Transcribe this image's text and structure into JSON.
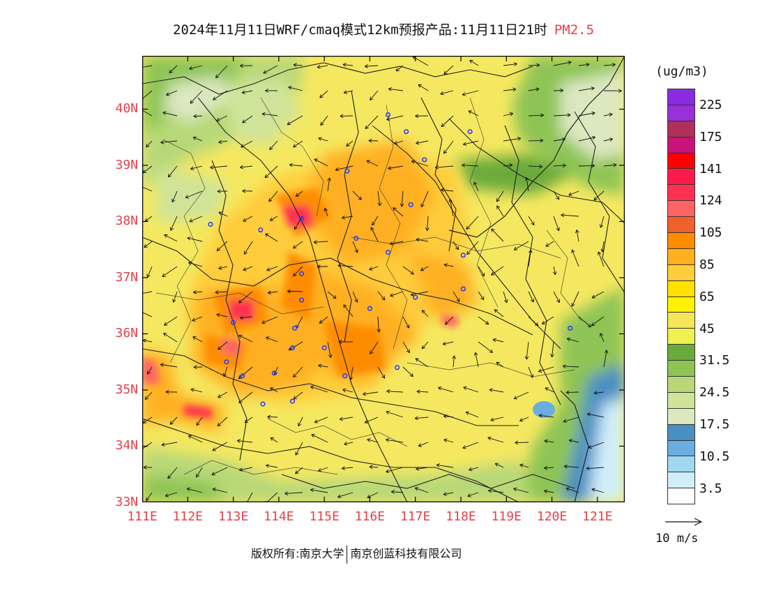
{
  "title": {
    "main": "2024年11月11日WRF/cmaq模式12km预报产品:11月11日21时",
    "variable": "PM2.5"
  },
  "latitude_labels": [
    "40N",
    "39N",
    "38N",
    "37N",
    "36N",
    "35N",
    "34N",
    "33N"
  ],
  "longitude_labels": [
    "111E",
    "112E",
    "113E",
    "114E",
    "115E",
    "116E",
    "117E",
    "118E",
    "119E",
    "120E",
    "121E"
  ],
  "colorbar": {
    "unit": "(ug/m3)",
    "colors": [
      "#8a2be2",
      "#9b30d9",
      "#b0305a",
      "#c8147a",
      "#ff0000",
      "#ff1a4b",
      "#ff3050",
      "#ff6464",
      "#f0602a",
      "#ff8c00",
      "#ffb020",
      "#ffcc3a",
      "#ffe000",
      "#fff200",
      "#f5e65a",
      "#f0f050",
      "#6aaa3a",
      "#8ec454",
      "#b8d878",
      "#cfe498",
      "#dce8c0",
      "#4a8fc4",
      "#6aaee0",
      "#a0d8f0",
      "#d0eefa",
      "#ffffff"
    ],
    "tick_labels": [
      "225",
      "175",
      "141",
      "124",
      "105",
      "85",
      "65",
      "45",
      "31.5",
      "24.5",
      "17.5",
      "10.5",
      "3.5"
    ]
  },
  "wind_key": {
    "label": "10 m/s"
  },
  "footer": {
    "copyright_prefix": "版权所有:南京大学",
    "company": "南京创蓝科技有限公司"
  },
  "map": {
    "city_markers": [
      {
        "lon": 116.4,
        "lat": 39.9
      },
      {
        "lon": 116.8,
        "lat": 39.6
      },
      {
        "lon": 117.2,
        "lat": 39.1
      },
      {
        "lon": 118.2,
        "lat": 39.6
      },
      {
        "lon": 115.5,
        "lat": 38.9
      },
      {
        "lon": 114.5,
        "lat": 38.05
      },
      {
        "lon": 116.9,
        "lat": 38.3
      },
      {
        "lon": 115.7,
        "lat": 37.7
      },
      {
        "lon": 116.4,
        "lat": 37.45
      },
      {
        "lon": 112.5,
        "lat": 37.95
      },
      {
        "lon": 113.6,
        "lat": 37.85
      },
      {
        "lon": 114.5,
        "lat": 37.07
      },
      {
        "lon": 114.5,
        "lat": 36.6
      },
      {
        "lon": 114.35,
        "lat": 36.1
      },
      {
        "lon": 113.0,
        "lat": 36.2
      },
      {
        "lon": 112.85,
        "lat": 35.5
      },
      {
        "lon": 113.2,
        "lat": 35.25
      },
      {
        "lon": 113.9,
        "lat": 35.3
      },
      {
        "lon": 114.3,
        "lat": 35.75
      },
      {
        "lon": 115.0,
        "lat": 35.75
      },
      {
        "lon": 115.45,
        "lat": 35.25
      },
      {
        "lon": 116.0,
        "lat": 36.45
      },
      {
        "lon": 117.0,
        "lat": 36.65
      },
      {
        "lon": 116.6,
        "lat": 35.4
      },
      {
        "lon": 118.05,
        "lat": 37.4
      },
      {
        "lon": 118.05,
        "lat": 36.8
      },
      {
        "lon": 114.3,
        "lat": 34.8
      },
      {
        "lon": 113.65,
        "lat": 34.75
      },
      {
        "lon": 120.4,
        "lat": 36.1
      }
    ]
  }
}
